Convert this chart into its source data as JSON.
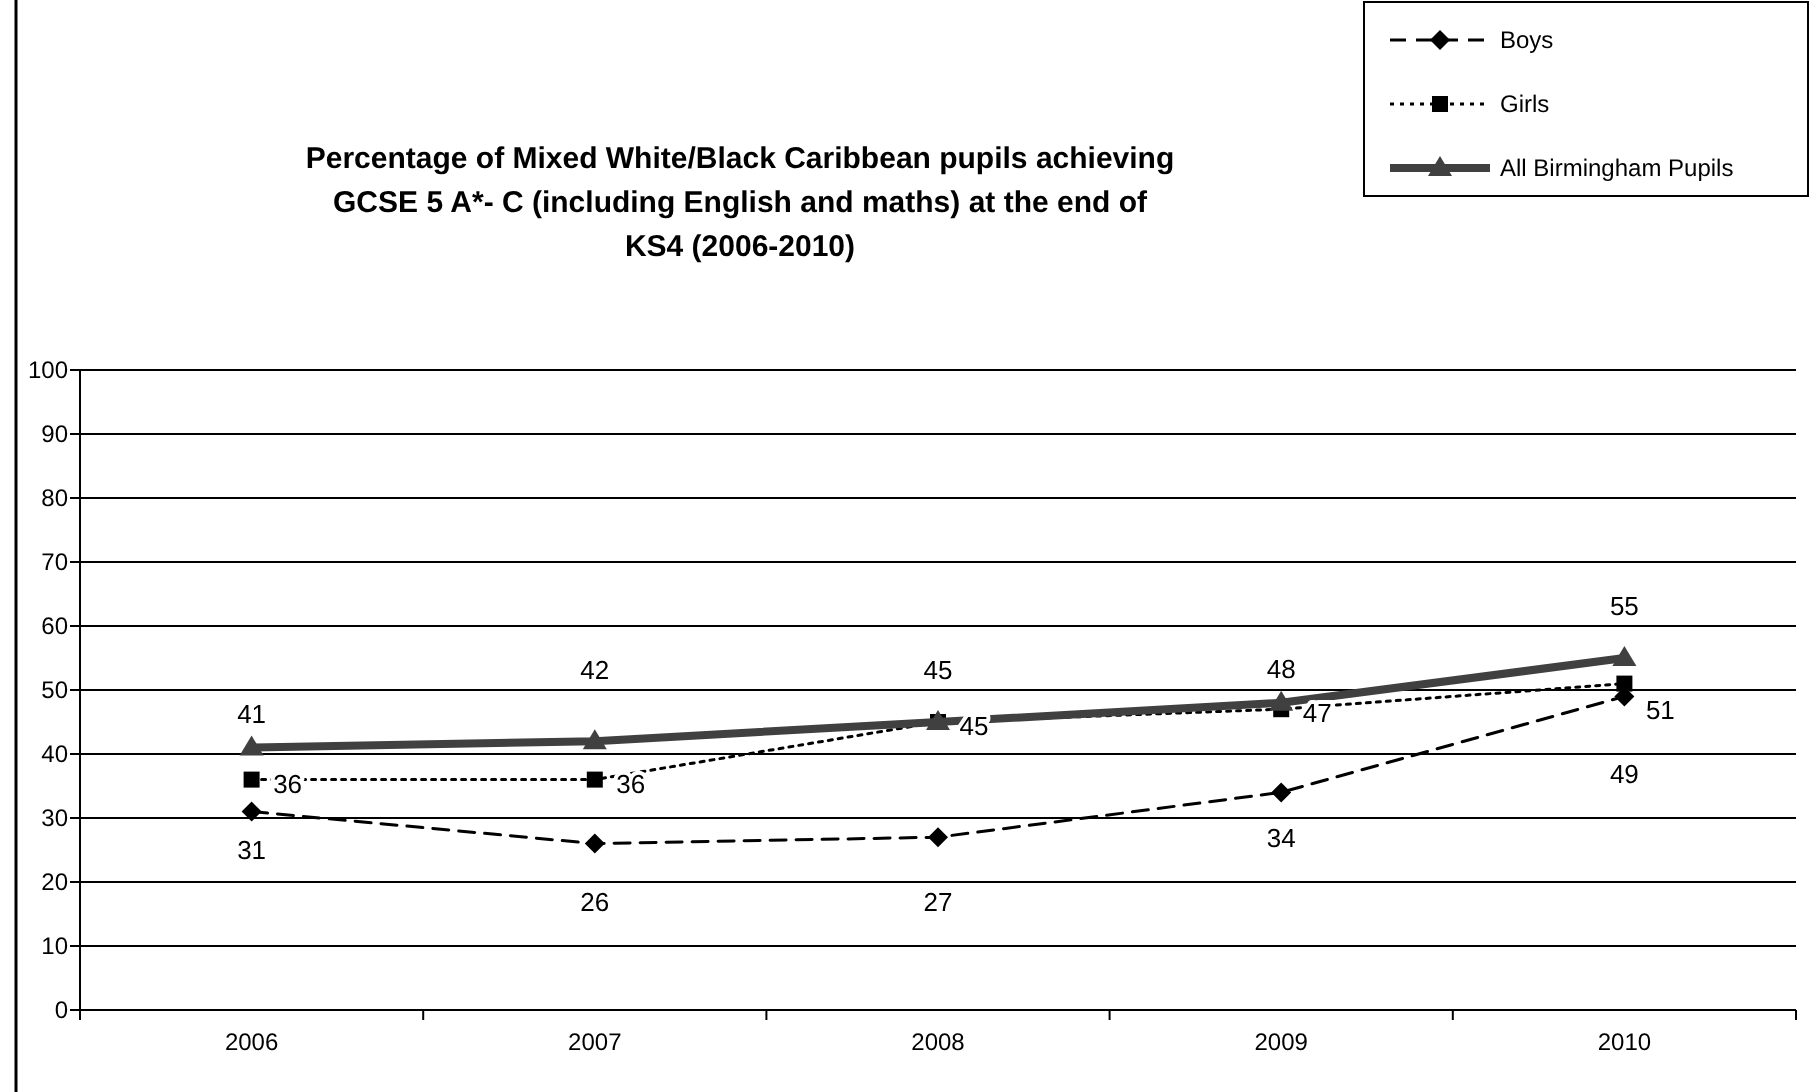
{
  "chart_data": {
    "type": "line",
    "title": "Percentage of Mixed White/Black Caribbean pupils achieving GCSE 5 A*- C (including English and maths) at the end of KS4 (2006-2010)",
    "categories": [
      "2006",
      "2007",
      "2008",
      "2009",
      "2010"
    ],
    "series": [
      {
        "name": "Boys",
        "color": "#000000",
        "values": [
          31,
          26,
          27,
          34,
          49
        ],
        "marker": "diamond",
        "line_style": "dashed"
      },
      {
        "name": "Girls",
        "color": "#000000",
        "values": [
          36,
          36,
          45,
          47,
          51
        ],
        "marker": "square",
        "line_style": "dotted"
      },
      {
        "name": "All Birmingham Pupils",
        "color": "#404040",
        "values": [
          41,
          42,
          45,
          48,
          55
        ],
        "marker": "triangle",
        "line_style": "solid"
      }
    ],
    "ylim": [
      0,
      100
    ],
    "yticks": [
      0,
      10,
      20,
      30,
      40,
      50,
      60,
      70,
      80,
      90,
      100
    ],
    "grid": "y",
    "legend": "top right",
    "data_labels": true
  }
}
